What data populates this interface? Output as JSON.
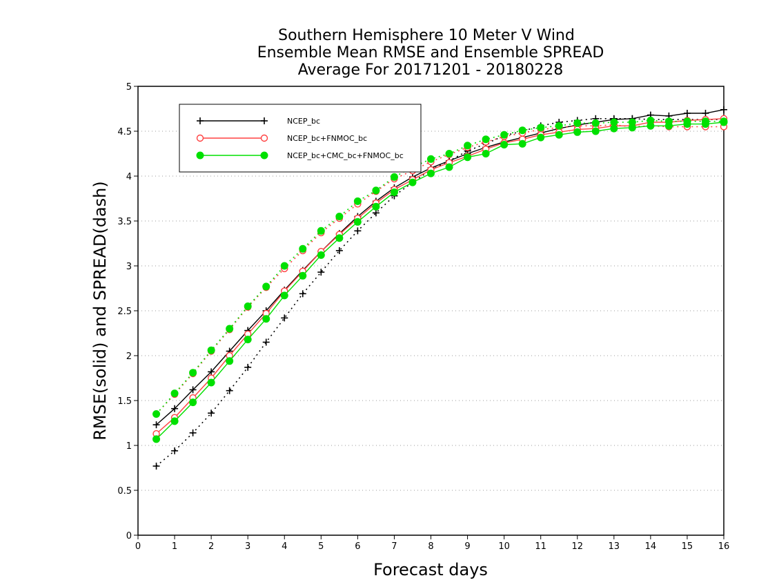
{
  "chart_data": {
    "type": "line",
    "title_lines": [
      "Southern Hemisphere 10 Meter V Wind",
      "Ensemble Mean RMSE and Ensemble SPREAD",
      "Average For 20171201 - 20180228"
    ],
    "xlabel": "Forecast days",
    "ylabel": "RMSE(solid) and SPREAD(dash)",
    "xlim": [
      0,
      16
    ],
    "ylim": [
      0,
      5
    ],
    "x_ticks": [
      "0",
      "1",
      "2",
      "3",
      "4",
      "5",
      "6",
      "7",
      "8",
      "9",
      "10",
      "11",
      "12",
      "13",
      "14",
      "15",
      "16"
    ],
    "y_ticks": [
      "0",
      "0.5",
      "1",
      "1.5",
      "2",
      "2.5",
      "3",
      "3.5",
      "4",
      "4.5",
      "5"
    ],
    "grid": "horizontal dotted",
    "legend_position": "top-left",
    "x": [
      0.5,
      1,
      1.5,
      2,
      2.5,
      3,
      3.5,
      4,
      4.5,
      5,
      5.5,
      6,
      6.5,
      7,
      7.5,
      8,
      8.5,
      9,
      9.5,
      10,
      10.5,
      11,
      11.5,
      12,
      12.5,
      13,
      13.5,
      14,
      14.5,
      15,
      15.5,
      16
    ],
    "series": [
      {
        "name": "NCEP_bc",
        "color": "#000000",
        "marker": "plus",
        "rmse": [
          1.23,
          1.41,
          1.62,
          1.82,
          2.05,
          2.28,
          2.5,
          2.73,
          2.95,
          3.16,
          3.36,
          3.55,
          3.72,
          3.87,
          3.99,
          4.09,
          4.17,
          4.25,
          4.32,
          4.38,
          4.43,
          4.48,
          4.53,
          4.57,
          4.6,
          4.63,
          4.64,
          4.68,
          4.67,
          4.7,
          4.7,
          4.74
        ],
        "spread": [
          0.77,
          0.94,
          1.14,
          1.36,
          1.61,
          1.87,
          2.15,
          2.42,
          2.69,
          2.93,
          3.17,
          3.39,
          3.59,
          3.78,
          3.93,
          4.07,
          4.17,
          4.28,
          4.36,
          4.45,
          4.5,
          4.56,
          4.6,
          4.62,
          4.64,
          4.64,
          4.64,
          4.63,
          4.63,
          4.63,
          4.63,
          4.63
        ]
      },
      {
        "name": "NCEP_bc+FNMOC_bc",
        "color": "#ff4040",
        "marker": "open-circle",
        "rmse": [
          1.13,
          1.31,
          1.53,
          1.75,
          2.0,
          2.24,
          2.47,
          2.72,
          2.94,
          3.16,
          3.35,
          3.53,
          3.7,
          3.85,
          3.96,
          4.07,
          4.15,
          4.22,
          4.3,
          4.37,
          4.41,
          4.46,
          4.49,
          4.52,
          4.53,
          4.56,
          4.56,
          4.6,
          4.6,
          4.62,
          4.63,
          4.64
        ],
        "spread": [
          1.35,
          1.57,
          1.8,
          2.05,
          2.29,
          2.54,
          2.76,
          2.97,
          3.17,
          3.37,
          3.53,
          3.69,
          3.83,
          3.97,
          4.06,
          4.16,
          4.24,
          4.32,
          4.38,
          4.44,
          4.48,
          4.52,
          4.54,
          4.56,
          4.56,
          4.57,
          4.55,
          4.56,
          4.55,
          4.55,
          4.55,
          4.55
        ]
      },
      {
        "name": "NCEP_bc+CMC_bc+FNMOC_bc",
        "color": "#00e000",
        "marker": "filled-circle",
        "rmse": [
          1.07,
          1.27,
          1.48,
          1.7,
          1.94,
          2.18,
          2.41,
          2.67,
          2.89,
          3.12,
          3.31,
          3.49,
          3.66,
          3.82,
          3.93,
          4.03,
          4.1,
          4.21,
          4.25,
          4.35,
          4.36,
          4.43,
          4.46,
          4.49,
          4.5,
          4.53,
          4.54,
          4.56,
          4.56,
          4.58,
          4.58,
          4.6
        ],
        "spread": [
          1.35,
          1.58,
          1.81,
          2.06,
          2.3,
          2.55,
          2.77,
          3.0,
          3.19,
          3.39,
          3.55,
          3.72,
          3.84,
          3.99,
          4.1,
          4.19,
          4.25,
          4.34,
          4.41,
          4.46,
          4.51,
          4.54,
          4.56,
          4.59,
          4.59,
          4.6,
          4.6,
          4.62,
          4.61,
          4.61,
          4.61,
          4.61
        ]
      }
    ]
  }
}
